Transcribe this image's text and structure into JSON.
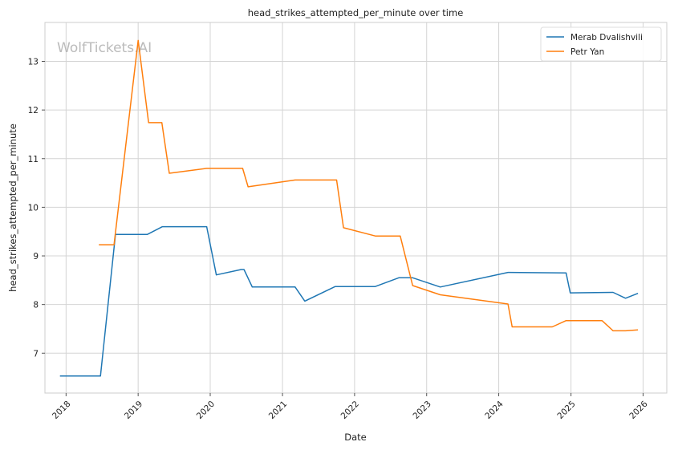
{
  "chart_data": {
    "type": "line",
    "title": "head_strikes_attempted_per_minute over time",
    "xlabel": "Date",
    "ylabel": "head_strikes_attempted_per_minute",
    "watermark": "WolfTickets.AI",
    "x_ticks": [
      "2018",
      "2019",
      "2020",
      "2021",
      "2022",
      "2023",
      "2024",
      "2025",
      "2026"
    ],
    "y_ticks": [
      "7",
      "8",
      "9",
      "10",
      "11",
      "12",
      "13"
    ],
    "xlim": [
      "2017-09-16",
      "2026-05-01"
    ],
    "ylim": [
      6.18,
      13.8
    ],
    "grid": true,
    "legend": "top-right",
    "series": [
      {
        "name": "Merab Dvalishvili",
        "color": "#1f77b4",
        "points": [
          [
            "2017-12-01",
            6.53
          ],
          [
            "2018-06-24",
            6.53
          ],
          [
            "2018-09-08",
            9.44
          ],
          [
            "2019-02-16",
            9.44
          ],
          [
            "2019-05-04",
            9.6
          ],
          [
            "2019-12-14",
            9.6
          ],
          [
            "2020-02-01",
            8.61
          ],
          [
            "2020-06-06",
            8.72
          ],
          [
            "2020-06-20",
            8.72
          ],
          [
            "2020-08-01",
            8.36
          ],
          [
            "2021-03-06",
            8.36
          ],
          [
            "2021-04-24",
            8.07
          ],
          [
            "2021-09-25",
            8.37
          ],
          [
            "2022-04-16",
            8.37
          ],
          [
            "2022-08-13",
            8.55
          ],
          [
            "2022-10-22",
            8.55
          ],
          [
            "2023-03-11",
            8.36
          ],
          [
            "2024-02-17",
            8.66
          ],
          [
            "2024-12-07",
            8.65
          ],
          [
            "2024-12-28",
            8.24
          ],
          [
            "2025-08-02",
            8.25
          ],
          [
            "2025-10-04",
            8.13
          ],
          [
            "2025-12-06",
            8.23
          ]
        ]
      },
      {
        "name": "Petr Yan",
        "color": "#ff7f0e",
        "points": [
          [
            "2018-06-16",
            9.23
          ],
          [
            "2018-09-01",
            9.23
          ],
          [
            "2019-01-01",
            13.43
          ],
          [
            "2019-02-23",
            11.74
          ],
          [
            "2019-05-01",
            11.74
          ],
          [
            "2019-06-08",
            10.7
          ],
          [
            "2019-12-14",
            10.8
          ],
          [
            "2020-06-13",
            10.8
          ],
          [
            "2020-07-11",
            10.42
          ],
          [
            "2021-03-06",
            10.56
          ],
          [
            "2021-10-02",
            10.56
          ],
          [
            "2021-11-06",
            9.58
          ],
          [
            "2022-04-16",
            9.41
          ],
          [
            "2022-08-20",
            9.41
          ],
          [
            "2022-10-22",
            8.39
          ],
          [
            "2023-03-11",
            8.2
          ],
          [
            "2024-02-17",
            8.01
          ],
          [
            "2024-03-09",
            7.54
          ],
          [
            "2024-09-28",
            7.54
          ],
          [
            "2024-12-07",
            7.67
          ],
          [
            "2025-06-07",
            7.67
          ],
          [
            "2025-08-02",
            7.46
          ],
          [
            "2025-10-04",
            7.46
          ],
          [
            "2025-12-06",
            7.48
          ]
        ]
      }
    ]
  }
}
